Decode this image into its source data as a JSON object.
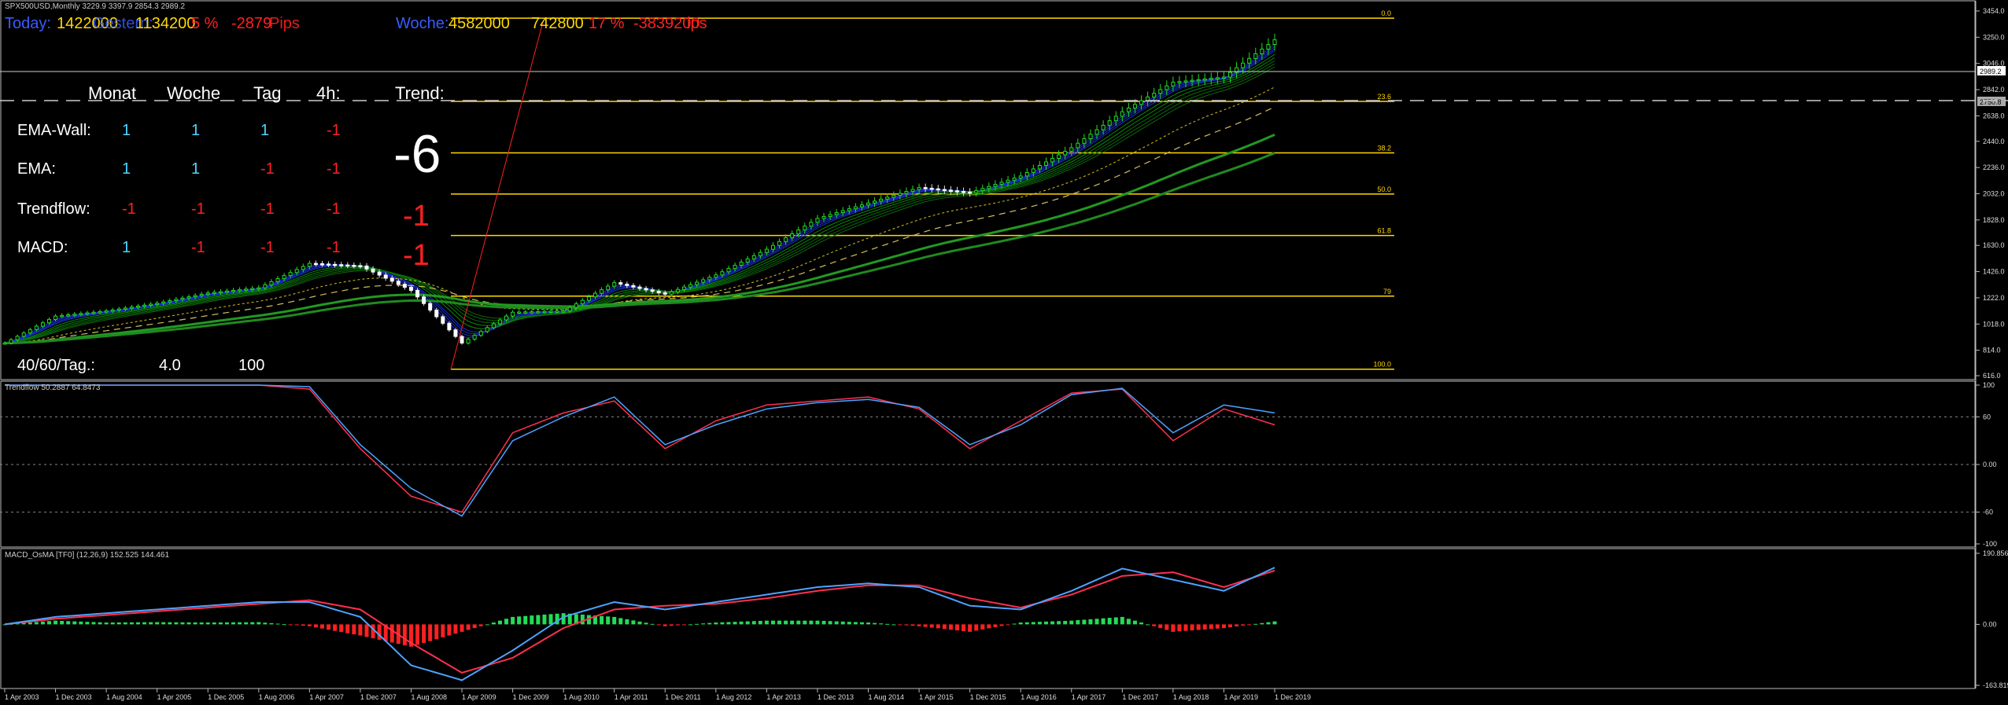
{
  "window": {
    "symbol_line": "SPX500USD,Monthly  3229.9 3397.9 2854.3 2989.2"
  },
  "top_stats": {
    "today_label": "Today:",
    "today_value": "1422000",
    "today_overlap": "Gestern:",
    "today_value2": "1134200",
    "today_pct": "5 %",
    "today_pips": "-2879",
    "today_pips_suffix": "Pips",
    "week_label": "Woche:",
    "week_value": "4582000",
    "week_value2": "742800",
    "week_pct": "17 %",
    "week_pips": "-3839200",
    "week_pips_suffix": "ips"
  },
  "signal_table": {
    "headers": [
      "Monat",
      "Woche",
      "Tag",
      "4h:",
      "Trend:"
    ],
    "rows": [
      {
        "label": "EMA-Wall:",
        "values": [
          "1",
          "1",
          "1",
          "-1"
        ]
      },
      {
        "label": "EMA:",
        "values": [
          "1",
          "1",
          "-1",
          "-1"
        ]
      },
      {
        "label": "Trendflow:",
        "values": [
          "-1",
          "-1",
          "-1",
          "-1"
        ]
      },
      {
        "label": "MACD:",
        "values": [
          "1",
          "-1",
          "-1",
          "-1"
        ]
      }
    ],
    "trend_value": "-6",
    "trend_sub1": "-1",
    "trend_sub2": "-1",
    "footer_label": "40/60/Tag.:",
    "footer_val1": "4.0",
    "footer_val2": "100",
    "colors": {
      "positive": "#4fd4ff",
      "negative": "#ff2020"
    }
  },
  "chart_data": [
    {
      "type": "line",
      "title": "SPX500USD,Monthly  3229.9 3397.9 2854.3 2989.2",
      "x": [
        "1 Apr 2003",
        "1 Dec 2003",
        "1 Aug 2004",
        "1 Apr 2005",
        "1 Dec 2005",
        "1 Aug 2006",
        "1 Apr 2007",
        "1 Dec 2007",
        "1 Aug 2008",
        "1 Apr 2009",
        "1 Dec 2009",
        "1 Aug 2010",
        "1 Apr 2011",
        "1 Dec 2011",
        "1 Aug 2012",
        "1 Apr 2013",
        "1 Dec 2013",
        "1 Aug 2014",
        "1 Apr 2015",
        "1 Dec 2015",
        "1 Aug 2016",
        "1 Apr 2017",
        "1 Dec 2017",
        "1 Aug 2018",
        "1 Apr 2019",
        "1 Dec 2019"
      ],
      "series": [
        {
          "values": [
            870,
            1080,
            1120,
            1180,
            1260,
            1300,
            1490,
            1470,
            1280,
            870,
            1110,
            1120,
            1340,
            1250,
            1400,
            1600,
            1840,
            1960,
            2080,
            2040,
            2170,
            2390,
            2670,
            2900,
            2940,
            3230
          ]
        }
      ],
      "ylim": [
        616,
        3454
      ],
      "y_ticks": [
        "3454.0",
        "3250.0",
        "3046.0",
        "2842.0",
        "2638.0",
        "2440.0",
        "2236.0",
        "2032.0",
        "1828.0",
        "1630.0",
        "1426.0",
        "1222.0",
        "1018.0",
        "814.0",
        "616.0"
      ],
      "price_tags": [
        "2989.2",
        "2750.8"
      ],
      "fib_levels": [
        {
          "label": "0.0",
          "value": 3397.9
        },
        {
          "label": "23.6",
          "value": 2750.8
        },
        {
          "label": "38.2",
          "value": 2350
        },
        {
          "label": "50.0",
          "value": 2030
        },
        {
          "label": "61.8",
          "value": 1707
        },
        {
          "label": "79",
          "value": 1235
        },
        {
          "label": "100.0",
          "value": 666.8
        }
      ]
    },
    {
      "type": "line",
      "title": "Trendflow 50.2887 64.8473",
      "x": [
        "1 Apr 2003",
        "1 Dec 2003",
        "1 Aug 2004",
        "1 Apr 2005",
        "1 Dec 2005",
        "1 Aug 2006",
        "1 Apr 2007",
        "1 Dec 2007",
        "1 Aug 2008",
        "1 Apr 2009",
        "1 Dec 2009",
        "1 Aug 2010",
        "1 Apr 2011",
        "1 Dec 2011",
        "1 Aug 2012",
        "1 Apr 2013",
        "1 Dec 2013",
        "1 Aug 2014",
        "1 Apr 2015",
        "1 Dec 2015",
        "1 Aug 2016",
        "1 Apr 2017",
        "1 Dec 2017",
        "1 Aug 2018",
        "1 Apr 2019",
        "1 Dec 2019"
      ],
      "series": [
        {
          "values": [
            100,
            100,
            100,
            100,
            100,
            100,
            95,
            20,
            -40,
            -60,
            40,
            65,
            80,
            20,
            55,
            75,
            80,
            85,
            70,
            20,
            55,
            90,
            95,
            30,
            70,
            50
          ]
        },
        {
          "values": [
            100,
            100,
            100,
            100,
            100,
            100,
            98,
            25,
            -30,
            -65,
            30,
            60,
            85,
            25,
            50,
            70,
            78,
            82,
            72,
            25,
            50,
            88,
            96,
            40,
            75,
            65
          ]
        }
      ],
      "ylim": [
        -100,
        100
      ],
      "y_ticks": [
        "100",
        "60",
        "0.00",
        "-60",
        "-100"
      ]
    },
    {
      "type": "bar",
      "title": "MACD_OsMA [TF0] (12,26,9) 152.525 144.461",
      "x": [
        "1 Apr 2003",
        "1 Dec 2003",
        "1 Aug 2004",
        "1 Apr 2005",
        "1 Dec 2005",
        "1 Aug 2006",
        "1 Apr 2007",
        "1 Dec 2007",
        "1 Aug 2008",
        "1 Apr 2009",
        "1 Dec 2009",
        "1 Aug 2010",
        "1 Apr 2011",
        "1 Dec 2011",
        "1 Aug 2012",
        "1 Apr 2013",
        "1 Dec 2013",
        "1 Aug 2014",
        "1 Apr 2015",
        "1 Dec 2015",
        "1 Aug 2016",
        "1 Apr 2017",
        "1 Dec 2017",
        "1 Aug 2018",
        "1 Apr 2019",
        "1 Dec 2019"
      ],
      "series": [
        {
          "values": [
            0,
            20,
            30,
            40,
            50,
            60,
            60,
            20,
            -110,
            -150,
            -70,
            20,
            60,
            40,
            60,
            80,
            100,
            110,
            100,
            50,
            40,
            90,
            150,
            120,
            90,
            152.5
          ]
        },
        {
          "values": [
            0,
            15,
            25,
            35,
            45,
            55,
            65,
            40,
            -50,
            -130,
            -90,
            -10,
            40,
            50,
            55,
            70,
            90,
            105,
            105,
            70,
            45,
            80,
            130,
            140,
            100,
            144.5
          ]
        },
        {
          "values": [
            0,
            10,
            5,
            6,
            5,
            6,
            -5,
            -30,
            -60,
            -20,
            20,
            30,
            20,
            -5,
            5,
            10,
            10,
            5,
            -5,
            -20,
            5,
            10,
            20,
            -20,
            -10,
            8
          ]
        }
      ],
      "ylim": [
        -163.819,
        190.856
      ],
      "y_ticks": [
        "190.856",
        "0.00",
        "-163.819"
      ]
    }
  ],
  "x_axis": {
    "labels": [
      "1 Apr 2003",
      "1 Dec 2003",
      "1 Aug 2004",
      "1 Apr 2005",
      "1 Dec 2005",
      "1 Aug 2006",
      "1 Apr 2007",
      "1 Dec 2007",
      "1 Aug 2008",
      "1 Apr 2009",
      "1 Dec 2009",
      "1 Aug 2010",
      "1 Apr 2011",
      "1 Dec 2011",
      "1 Aug 2012",
      "1 Apr 2013",
      "1 Dec 2013",
      "1 Aug 2014",
      "1 Apr 2015",
      "1 Dec 2015",
      "1 Aug 2016",
      "1 Apr 2017",
      "1 Dec 2017",
      "1 Aug 2018",
      "1 Apr 2019",
      "1 Dec 2019"
    ]
  },
  "colors": {
    "fib": "#ffd800",
    "candle_up": "#22dd22",
    "candle_down": "#ffffff",
    "trendflow_a": "#4da3ff",
    "trendflow_b": "#ff3050",
    "macd_main": "#4da3ff",
    "macd_signal": "#ff3050",
    "hist_pos": "#22dd55",
    "hist_neg": "#ff2020"
  }
}
